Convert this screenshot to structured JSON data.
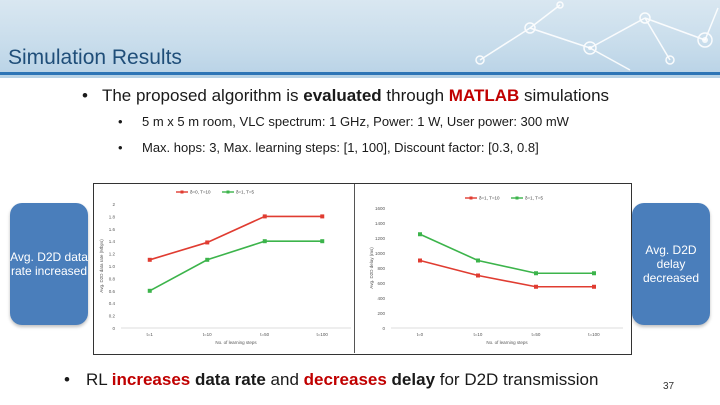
{
  "slide": {
    "title": "Simulation Results",
    "bullet": {
      "pre": "The proposed algorithm is ",
      "em1": "evaluated",
      "mid": " through ",
      "em2": "MATLAB",
      "post": " simulations"
    },
    "sub_bullets": [
      "5 m x 5 m room, VLC spectrum: 1 GHz, Power: 1 W, User power: 300 mW",
      "Max. hops: 3, Max. learning steps: [1, 100], Discount factor: [0.3, 0.8]"
    ],
    "left_box": "Avg. D2D data rate increased",
    "right_box": "Avg. D2D delay decreased",
    "bottom": {
      "pre": "RL ",
      "em1": "increases",
      "mid1": " data rate",
      "mid2": " and ",
      "em2": "decreases",
      "mid3": " delay",
      "post": " for D2D transmission"
    },
    "page_number": "37",
    "colors": {
      "accent": "#c00000",
      "box": "#4a7ebb",
      "header_text": "#1f4e79",
      "series_red": "#e03c31",
      "series_green": "#3cb44b"
    }
  },
  "chart_data": [
    {
      "type": "line",
      "categories": [
        "t=1",
        "t=10",
        "t=50",
        "t=100"
      ],
      "series": [
        {
          "name": "δ=0, T=10",
          "color": "#e03c31",
          "values": [
            1.1,
            1.38,
            1.8,
            1.8
          ]
        },
        {
          "name": "δ=1, T=5",
          "color": "#3cb44b",
          "values": [
            0.6,
            1.1,
            1.4,
            1.4
          ]
        }
      ],
      "xlabel": "No. of learning steps",
      "ylabel": "Avg. D2D data rate (Mbps)",
      "yticks": [
        "0",
        "0.2",
        "0.4",
        "0.6",
        "0.8",
        "1.0",
        "1.2",
        "1.4",
        "1.6",
        "1.8",
        "2"
      ],
      "ylim": [
        0,
        2
      ],
      "legend": "top"
    },
    {
      "type": "line",
      "categories": [
        "t=0",
        "t=10",
        "t=50",
        "t=100"
      ],
      "series": [
        {
          "name": "δ=1, T=10",
          "color": "#e03c31",
          "values": [
            900,
            700,
            550,
            550
          ]
        },
        {
          "name": "δ=1, T=5",
          "color": "#3cb44b",
          "values": [
            1250,
            900,
            730,
            730
          ]
        }
      ],
      "xlabel": "No. of learning steps",
      "ylabel": "Avg. D2D delay (ms)",
      "yticks": [
        "0",
        "200",
        "400",
        "600",
        "800",
        "1000",
        "1200",
        "1400",
        "1600"
      ],
      "ylim": [
        0,
        1600
      ],
      "legend": "top-right"
    }
  ]
}
